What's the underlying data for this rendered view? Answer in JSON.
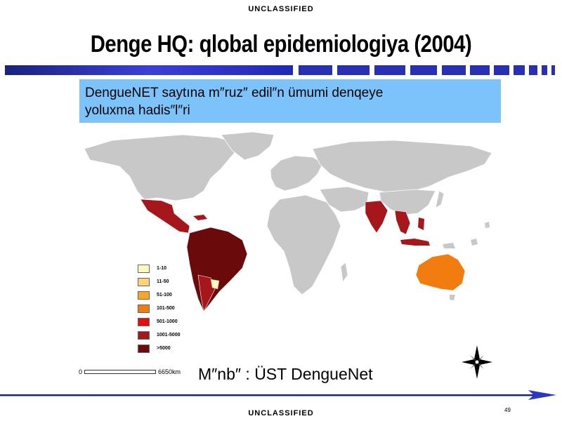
{
  "header": {
    "classification": "UNCLASSIFIED"
  },
  "title": "Denge HQ: qlobal epidemiologiya (2004)",
  "subtitle": {
    "line1": "DengueNET saytına m″ruz″  edil″n ümumi denqeye",
    "line2": "yoluxma hadis″l″ri"
  },
  "legend": [
    {
      "label": "1-10",
      "color": "#fff7c2"
    },
    {
      "label": "11-50",
      "color": "#fdd37a"
    },
    {
      "label": "51-100",
      "color": "#f9a52b"
    },
    {
      "label": "101-500",
      "color": "#f17c0f"
    },
    {
      "label": "501-1000",
      "color": "#e10f0f"
    },
    {
      "label": "1001-5000",
      "color": "#a5171b"
    },
    {
      "label": ">5000",
      "color": "#6b0a0a"
    }
  ],
  "scale": {
    "start": "0",
    "end": "6650km"
  },
  "source": "M″nb″ : ÜST DengueNet",
  "footer": {
    "classification": "UNCLASSIFIED",
    "page_number": "49"
  }
}
